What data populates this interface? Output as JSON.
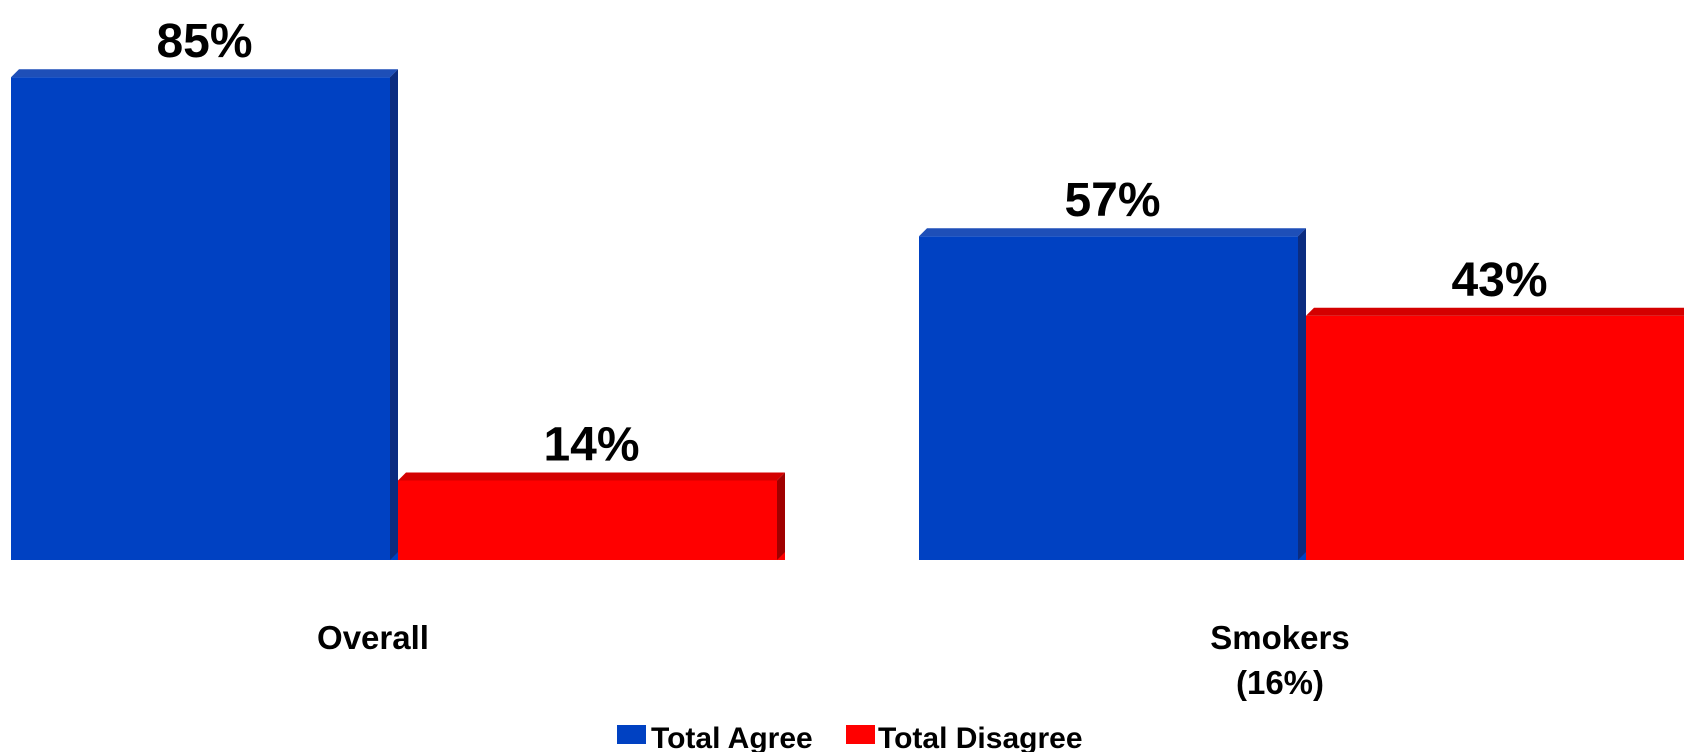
{
  "chart_data": {
    "type": "bar",
    "categories": [
      "Overall",
      "Smokers"
    ],
    "category_sublabels": [
      "",
      "(16%)"
    ],
    "series": [
      {
        "name": "Total Agree",
        "values": [
          85,
          57
        ],
        "labels": [
          "85%",
          "57%"
        ],
        "color": "#0041C2",
        "side_color": "#0B2C80",
        "top_color": "#1E4FB8"
      },
      {
        "name": "Total Disagree",
        "values": [
          14,
          43
        ],
        "labels": [
          "14%",
          "43%"
        ],
        "color": "#FF0000",
        "side_color": "#A00000",
        "top_color": "#D40000"
      }
    ],
    "ylim": [
      0,
      100
    ],
    "grid": false,
    "legend": "bottom-center"
  }
}
